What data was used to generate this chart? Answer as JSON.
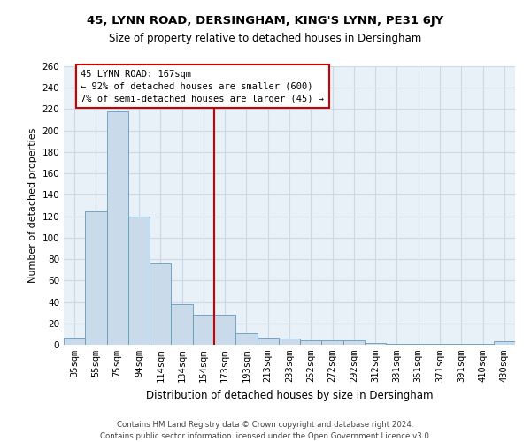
{
  "title1": "45, LYNN ROAD, DERSINGHAM, KING'S LYNN, PE31 6JY",
  "title2": "Size of property relative to detached houses in Dersingham",
  "xlabel": "Distribution of detached houses by size in Dersingham",
  "ylabel": "Number of detached properties",
  "categories": [
    "35sqm",
    "55sqm",
    "75sqm",
    "94sqm",
    "114sqm",
    "134sqm",
    "154sqm",
    "173sqm",
    "193sqm",
    "213sqm",
    "233sqm",
    "252sqm",
    "272sqm",
    "292sqm",
    "312sqm",
    "331sqm",
    "351sqm",
    "371sqm",
    "391sqm",
    "410sqm",
    "430sqm"
  ],
  "values": [
    7,
    125,
    218,
    120,
    76,
    38,
    28,
    28,
    11,
    7,
    6,
    4,
    4,
    4,
    2,
    1,
    1,
    1,
    1,
    1,
    3
  ],
  "bar_color": "#c9daea",
  "bar_edge_color": "#6699bb",
  "ref_bar_index": 7,
  "ref_line_color": "#cc0000",
  "annotation_title": "45 LYNN ROAD: 167sqm",
  "annotation_line1": "← 92% of detached houses are smaller (600)",
  "annotation_line2": "7% of semi-detached houses are larger (45) →",
  "annotation_box_edge": "#cc0000",
  "ylim": [
    0,
    260
  ],
  "yticks": [
    0,
    20,
    40,
    60,
    80,
    100,
    120,
    140,
    160,
    180,
    200,
    220,
    240,
    260
  ],
  "grid_color": "#ccd9e5",
  "background_color": "#e8f0f8",
  "footer1": "Contains HM Land Registry data © Crown copyright and database right 2024.",
  "footer2": "Contains public sector information licensed under the Open Government Licence v3.0.",
  "title1_fontsize": 9.5,
  "title2_fontsize": 8.5,
  "ylabel_fontsize": 8.0,
  "xlabel_fontsize": 8.5,
  "tick_fontsize": 7.5,
  "annot_fontsize": 7.5,
  "footer_fontsize": 6.2
}
